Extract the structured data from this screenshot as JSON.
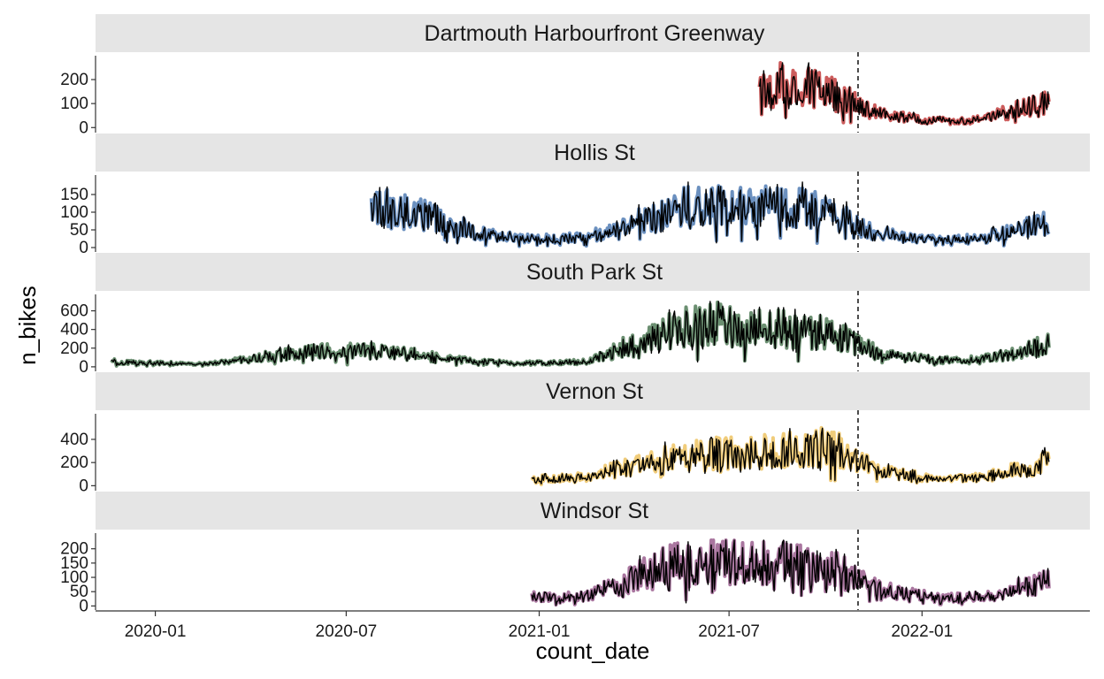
{
  "chart_data": {
    "type": "line",
    "xlabel": "count_date",
    "ylabel": "n_bikes",
    "x_ticks": [
      "2020-01",
      "2020-07",
      "2021-01",
      "2021-07",
      "2022-01"
    ],
    "xlim": [
      "2019-11-05",
      "2022-06-10"
    ],
    "reference_line_date": "2021-11-01",
    "grid": false,
    "legend": "none",
    "facets": [
      {
        "name": "Dartmouth Harbourfront Greenway",
        "color": "#cc5c5c",
        "ylim": [
          -10,
          270
        ],
        "y_ticks": [
          0,
          100,
          200
        ],
        "start_date": "2021-07-30",
        "end_date": "2022-05-02",
        "points": [
          [
            "2021-07-30",
            150
          ],
          [
            "2021-08-15",
            185
          ],
          [
            "2021-09-01",
            190
          ],
          [
            "2021-09-15",
            175
          ],
          [
            "2021-10-01",
            150
          ],
          [
            "2021-10-15",
            130
          ],
          [
            "2021-11-01",
            95
          ],
          [
            "2021-11-15",
            70
          ],
          [
            "2021-12-01",
            50
          ],
          [
            "2022-01-01",
            35
          ],
          [
            "2022-02-01",
            25
          ],
          [
            "2022-03-01",
            35
          ],
          [
            "2022-04-01",
            75
          ],
          [
            "2022-05-02",
            100
          ]
        ]
      },
      {
        "name": "Hollis St",
        "color": "#6b90bf",
        "ylim": [
          -5,
          185
        ],
        "y_ticks": [
          0,
          50,
          100,
          150
        ],
        "start_date": "2020-07-25",
        "end_date": "2022-05-02",
        "points": [
          [
            "2020-07-25",
            120
          ],
          [
            "2020-08-15",
            105
          ],
          [
            "2020-09-15",
            95
          ],
          [
            "2020-10-15",
            60
          ],
          [
            "2020-11-15",
            35
          ],
          [
            "2020-12-15",
            25
          ],
          [
            "2021-01-15",
            25
          ],
          [
            "2021-02-15",
            30
          ],
          [
            "2021-03-15",
            55
          ],
          [
            "2021-04-15",
            80
          ],
          [
            "2021-05-15",
            110
          ],
          [
            "2021-06-15",
            125
          ],
          [
            "2021-07-15",
            115
          ],
          [
            "2021-08-15",
            115
          ],
          [
            "2021-09-15",
            110
          ],
          [
            "2021-10-15",
            90
          ],
          [
            "2021-11-15",
            45
          ],
          [
            "2021-12-15",
            30
          ],
          [
            "2022-01-15",
            22
          ],
          [
            "2022-02-15",
            25
          ],
          [
            "2022-03-15",
            40
          ],
          [
            "2022-04-15",
            60
          ],
          [
            "2022-05-02",
            70
          ]
        ]
      },
      {
        "name": "South Park St",
        "color": "#6b8f71",
        "ylim": [
          -20,
          700
        ],
        "y_ticks": [
          0,
          200,
          400,
          600
        ],
        "start_date": "2019-11-20",
        "end_date": "2022-05-02",
        "points": [
          [
            "2019-11-20",
            60
          ],
          [
            "2019-12-15",
            45
          ],
          [
            "2020-01-15",
            40
          ],
          [
            "2020-02-15",
            30
          ],
          [
            "2020-03-15",
            60
          ],
          [
            "2020-04-15",
            110
          ],
          [
            "2020-05-15",
            150
          ],
          [
            "2020-06-15",
            165
          ],
          [
            "2020-07-15",
            175
          ],
          [
            "2020-08-15",
            160
          ],
          [
            "2020-09-15",
            120
          ],
          [
            "2020-10-15",
            75
          ],
          [
            "2020-11-15",
            50
          ],
          [
            "2020-12-15",
            40
          ],
          [
            "2021-01-15",
            45
          ],
          [
            "2021-02-15",
            55
          ],
          [
            "2021-03-15",
            170
          ],
          [
            "2021-04-15",
            330
          ],
          [
            "2021-05-15",
            420
          ],
          [
            "2021-06-15",
            470
          ],
          [
            "2021-07-15",
            420
          ],
          [
            "2021-08-15",
            410
          ],
          [
            "2021-09-15",
            400
          ],
          [
            "2021-10-15",
            330
          ],
          [
            "2021-11-15",
            170
          ],
          [
            "2021-12-15",
            110
          ],
          [
            "2022-01-15",
            70
          ],
          [
            "2022-02-15",
            75
          ],
          [
            "2022-03-15",
            110
          ],
          [
            "2022-04-15",
            190
          ],
          [
            "2022-05-02",
            240
          ]
        ]
      },
      {
        "name": "Vernon St",
        "color": "#f0cc7a",
        "ylim": [
          -20,
          560
        ],
        "y_ticks": [
          0,
          200,
          400
        ],
        "start_date": "2020-12-25",
        "end_date": "2022-05-02",
        "points": [
          [
            "2020-12-25",
            60
          ],
          [
            "2021-01-15",
            65
          ],
          [
            "2021-02-15",
            75
          ],
          [
            "2021-03-15",
            140
          ],
          [
            "2021-04-15",
            200
          ],
          [
            "2021-05-15",
            260
          ],
          [
            "2021-06-15",
            290
          ],
          [
            "2021-07-15",
            280
          ],
          [
            "2021-08-15",
            300
          ],
          [
            "2021-09-15",
            350
          ],
          [
            "2021-10-15",
            310
          ],
          [
            "2021-11-15",
            150
          ],
          [
            "2021-12-15",
            95
          ],
          [
            "2022-01-15",
            60
          ],
          [
            "2022-02-15",
            65
          ],
          [
            "2022-03-15",
            100
          ],
          [
            "2022-04-15",
            165
          ],
          [
            "2022-05-02",
            210
          ]
        ]
      },
      {
        "name": "Windsor St",
        "color": "#a9769f",
        "ylim": [
          -5,
          230
        ],
        "y_ticks": [
          0,
          50,
          100,
          150,
          200
        ],
        "start_date": "2020-12-25",
        "end_date": "2022-05-02",
        "points": [
          [
            "2020-12-25",
            35
          ],
          [
            "2021-01-15",
            30
          ],
          [
            "2021-02-15",
            35
          ],
          [
            "2021-03-15",
            70
          ],
          [
            "2021-04-15",
            120
          ],
          [
            "2021-05-15",
            150
          ],
          [
            "2021-06-15",
            160
          ],
          [
            "2021-07-15",
            150
          ],
          [
            "2021-08-15",
            150
          ],
          [
            "2021-09-15",
            145
          ],
          [
            "2021-10-15",
            120
          ],
          [
            "2021-11-15",
            65
          ],
          [
            "2021-12-15",
            45
          ],
          [
            "2022-01-15",
            30
          ],
          [
            "2022-02-15",
            30
          ],
          [
            "2022-03-15",
            45
          ],
          [
            "2022-04-15",
            75
          ],
          [
            "2022-05-02",
            95
          ]
        ]
      }
    ]
  }
}
